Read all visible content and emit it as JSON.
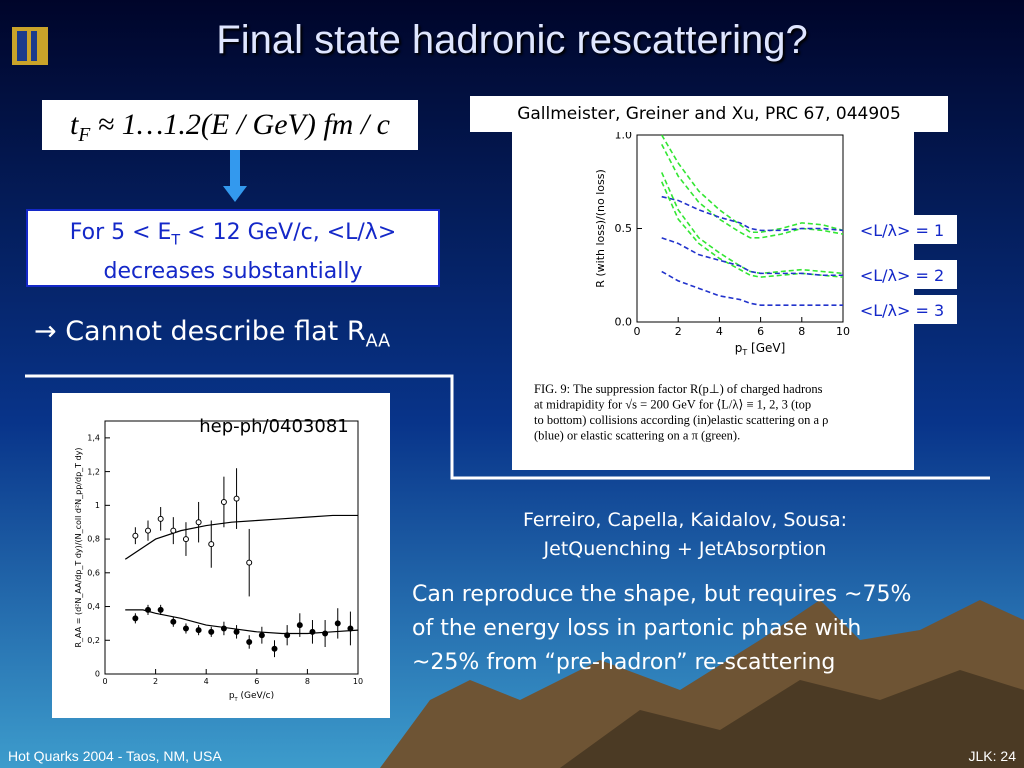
{
  "title": "Final state hadronic rescattering?",
  "formula": {
    "t": "t",
    "t_sub": "F",
    "rest": "≈ 1…1.2(E / GeV) fm / c"
  },
  "box": {
    "line1_a": "For 5 < E",
    "line1_sub": "T",
    "line1_b": " < 12 GeV/c, <L/λ>",
    "line2": "decreases substantially"
  },
  "claim": {
    "text": "→ Cannot describe flat R",
    "sub": "AA"
  },
  "reference1": "Gallmeister, Greiner and Xu, PRC 67, 044905",
  "figure1": {
    "y_label": "R (with loss)/(no loss)",
    "x_label": "p",
    "x_label_sub": "T",
    "x_label_unit": " [GeV]",
    "xlim": [
      0,
      10
    ],
    "ylim": [
      0,
      1
    ],
    "xticks": [
      0,
      2,
      4,
      6,
      8,
      10
    ],
    "yticks": [
      {
        "value": 0,
        "label": "0.0"
      },
      {
        "value": 0.5,
        "label": "0.5"
      },
      {
        "value": 1,
        "label": "1.0"
      }
    ],
    "x": [
      1.2,
      2,
      3,
      4,
      5,
      5.5,
      6,
      7,
      8,
      9,
      10
    ],
    "curves": [
      {
        "color": "#33e633",
        "values": [
          1.0,
          0.85,
          0.7,
          0.6,
          0.52,
          0.48,
          0.48,
          0.5,
          0.53,
          0.52,
          0.49
        ]
      },
      {
        "color": "#33e633",
        "values": [
          0.95,
          0.78,
          0.64,
          0.55,
          0.48,
          0.45,
          0.45,
          0.47,
          0.5,
          0.49,
          0.47
        ]
      },
      {
        "color": "#2233cc",
        "values": [
          0.67,
          0.65,
          0.6,
          0.56,
          0.53,
          0.5,
          0.49,
          0.49,
          0.5,
          0.5,
          0.49
        ]
      },
      {
        "color": "#33e633",
        "values": [
          0.8,
          0.6,
          0.45,
          0.37,
          0.3,
          0.27,
          0.26,
          0.27,
          0.28,
          0.27,
          0.26
        ]
      },
      {
        "color": "#33e633",
        "values": [
          0.75,
          0.55,
          0.42,
          0.34,
          0.28,
          0.25,
          0.24,
          0.25,
          0.26,
          0.25,
          0.24
        ]
      },
      {
        "color": "#2233cc",
        "values": [
          0.45,
          0.42,
          0.36,
          0.33,
          0.3,
          0.27,
          0.26,
          0.26,
          0.26,
          0.25,
          0.25
        ]
      },
      {
        "color": "#2233cc",
        "values": [
          0.27,
          0.22,
          0.18,
          0.14,
          0.12,
          0.1,
          0.09,
          0.09,
          0.09,
          0.09,
          0.09
        ]
      }
    ],
    "curve_labels": [
      "<L/λ> = 1",
      "<L/λ> = 2",
      "<L/λ> = 3"
    ],
    "caption": [
      "FIG. 9:   The suppression factor R(p⊥) of charged hadrons",
      "at midrapidity for √s = 200 GeV for ⟨L/λ⟩ ≡ 1, 2, 3 (top",
      "to bottom) collisions according (in)elastic scattering on a ρ",
      "(blue) or elastic scattering on a π (green)."
    ]
  },
  "figure2": {
    "label": "hep-ph/0403081",
    "y_label": "R_AA = (d²N_AA/dp_T dy)/(N_coll d²N_pp/dp_T dy)",
    "x_label": "p",
    "x_label_sub": "T",
    "x_label_unit": " (GeV/c)",
    "xlim": [
      0,
      10
    ],
    "ylim": [
      0,
      1.5
    ],
    "xticks": [
      0,
      2,
      4,
      6,
      8,
      10
    ],
    "yticks": [
      0,
      {
        "value": 0.2,
        "label": "0,2"
      },
      {
        "value": 0.4,
        "label": "0,4"
      },
      {
        "value": 0.6,
        "label": "0,6"
      },
      {
        "value": 0.8,
        "label": "0,8"
      },
      1,
      {
        "value": 1.2,
        "label": "1,2"
      },
      {
        "value": 1.4,
        "label": "1,4"
      }
    ],
    "points": [
      {
        "style": "open",
        "x": [
          1.2,
          1.7,
          2.2,
          2.7,
          3.2,
          3.7,
          4.2,
          4.7,
          5.2,
          5.7
        ],
        "values": [
          0.82,
          0.85,
          0.92,
          0.85,
          0.8,
          0.9,
          0.77,
          1.02,
          1.04,
          0.66
        ],
        "errors": [
          0.05,
          0.06,
          0.07,
          0.08,
          0.1,
          0.12,
          0.14,
          0.15,
          0.18,
          0.2
        ]
      },
      {
        "style": "filled",
        "x": [
          1.2,
          1.7,
          2.2,
          2.7,
          3.2,
          3.7,
          4.2,
          4.7,
          5.2,
          5.7,
          6.2,
          6.7,
          7.2,
          7.7,
          8.2,
          8.7,
          9.2,
          9.7
        ],
        "values": [
          0.33,
          0.38,
          0.38,
          0.31,
          0.27,
          0.26,
          0.25,
          0.27,
          0.25,
          0.19,
          0.23,
          0.15,
          0.23,
          0.29,
          0.25,
          0.24,
          0.3,
          0.27
        ],
        "errors": [
          0.03,
          0.03,
          0.03,
          0.03,
          0.03,
          0.03,
          0.03,
          0.04,
          0.04,
          0.04,
          0.05,
          0.05,
          0.06,
          0.07,
          0.07,
          0.08,
          0.09,
          0.1
        ]
      }
    ],
    "curve_x": [
      0.8,
      1.5,
      2,
      3,
      4,
      5,
      6,
      7,
      8,
      9,
      10
    ],
    "curves": [
      [
        0.68,
        0.75,
        0.8,
        0.85,
        0.88,
        0.9,
        0.91,
        0.92,
        0.93,
        0.94,
        0.94
      ],
      [
        0.38,
        0.38,
        0.36,
        0.33,
        0.29,
        0.27,
        0.25,
        0.24,
        0.24,
        0.25,
        0.26
      ]
    ]
  },
  "reference2": [
    "Ferreiro, Capella, Kaidalov, Sousa:",
    "JetQuenching + JetAbsorption"
  ],
  "body": [
    "Can reproduce the shape, but requires ~75%",
    "of the energy loss in partonic phase with",
    "~25% from “pre-hadron” re-scattering"
  ],
  "footer": {
    "left": "Hot Quarks 2004 - Taos, NM, USA",
    "right": "JLK: 24"
  }
}
